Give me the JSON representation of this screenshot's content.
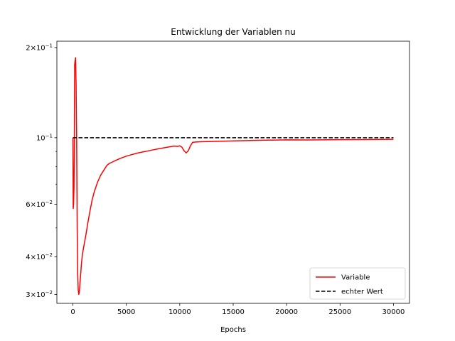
{
  "chart_data": {
    "type": "line",
    "title": "Entwicklung der Variablen nu",
    "xlabel": "Epochs",
    "ylabel": "",
    "xlim": [
      -1500,
      31500
    ],
    "ylim": [
      0.028,
      0.21
    ],
    "yscale": "log",
    "grid": false,
    "legend_position": "lower-right",
    "x_ticks": [
      0,
      5000,
      10000,
      15000,
      20000,
      25000,
      30000
    ],
    "x_tick_labels": [
      "0",
      "5000",
      "10000",
      "15000",
      "20000",
      "25000",
      "30000"
    ],
    "y_major_ticks": [
      {
        "value": 0.03,
        "mantissa": "3",
        "exponent": "−2"
      },
      {
        "value": 0.04,
        "mantissa": "4",
        "exponent": "−2"
      },
      {
        "value": 0.06,
        "mantissa": "6",
        "exponent": "−2"
      },
      {
        "value": 0.1,
        "mantissa": "",
        "exponent": "−1"
      },
      {
        "value": 0.2,
        "mantissa": "2",
        "exponent": "−1"
      }
    ],
    "y_minor_ticks": [
      0.05,
      0.07,
      0.08,
      0.09
    ],
    "series": [
      {
        "name": "Variable",
        "color": "#ff0000",
        "style": "solid",
        "x": [
          0,
          30,
          60,
          100,
          130,
          160,
          200,
          250,
          300,
          350,
          400,
          450,
          500,
          550,
          600,
          700,
          800,
          900,
          1000,
          1200,
          1400,
          1600,
          1800,
          2000,
          2300,
          2600,
          3000,
          3200,
          3400,
          3700,
          4000,
          4500,
          5000,
          5500,
          6000,
          6500,
          7000,
          7500,
          8000,
          8500,
          9000,
          9500,
          9800,
          10000,
          10200,
          10400,
          10600,
          10800,
          11000,
          11200,
          11500,
          12000,
          13000,
          15000,
          17000,
          20000,
          22000,
          25000,
          27000,
          30000
        ],
        "y": [
          0.1,
          0.058,
          0.06,
          0.068,
          0.09,
          0.175,
          0.18,
          0.185,
          0.15,
          0.1,
          0.05,
          0.035,
          0.031,
          0.03,
          0.0305,
          0.034,
          0.038,
          0.041,
          0.043,
          0.047,
          0.052,
          0.057,
          0.062,
          0.066,
          0.071,
          0.075,
          0.079,
          0.081,
          0.082,
          0.083,
          0.084,
          0.0855,
          0.0868,
          0.0878,
          0.0888,
          0.0896,
          0.0903,
          0.0911,
          0.0918,
          0.0925,
          0.0932,
          0.0938,
          0.0935,
          0.094,
          0.093,
          0.0905,
          0.089,
          0.0905,
          0.094,
          0.0965,
          0.0968,
          0.097,
          0.0972,
          0.0976,
          0.098,
          0.0984,
          0.0983,
          0.0985,
          0.0986,
          0.0988
        ]
      },
      {
        "name": "echter Wert",
        "color": "#000000",
        "style": "dashed",
        "x": [
          0,
          30000
        ],
        "y": [
          0.1,
          0.1
        ]
      }
    ]
  }
}
